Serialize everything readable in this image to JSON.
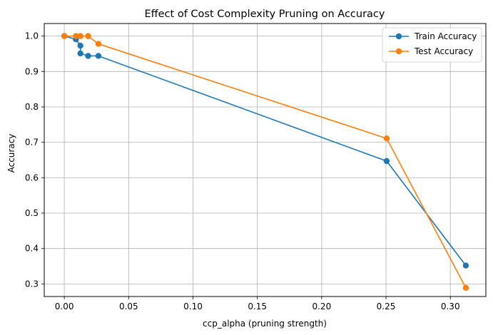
{
  "chart_data": {
    "type": "line",
    "title": "Effect of Cost Complexity Pruning on Accuracy",
    "xlabel": "ccp_alpha (pruning strength)",
    "ylabel": "Accuracy",
    "xlim": [
      -0.0156,
      0.3276
    ],
    "ylim": [
      0.2645,
      1.0355
    ],
    "xticks": [
      0.0,
      0.05,
      0.1,
      0.15,
      0.2,
      0.25,
      0.3
    ],
    "xtick_labels": [
      "0.00",
      "0.05",
      "0.10",
      "0.15",
      "0.20",
      "0.25",
      "0.30"
    ],
    "yticks": [
      0.3,
      0.4,
      0.5,
      0.6,
      0.7,
      0.8,
      0.9,
      1.0
    ],
    "ytick_labels": [
      "0.3",
      "0.4",
      "0.5",
      "0.6",
      "0.7",
      "0.8",
      "0.9",
      "1.0"
    ],
    "grid": true,
    "legend_position": "top-right",
    "series": [
      {
        "name": "Train Accuracy",
        "color": "#1f77b4",
        "x": [
          0.0,
          0.009,
          0.0125,
          0.0125,
          0.0185,
          0.0265,
          0.2505,
          0.312
        ],
        "y": [
          1.0,
          0.991,
          0.973,
          0.951,
          0.944,
          0.944,
          0.647,
          0.352
        ]
      },
      {
        "name": "Test Accuracy",
        "color": "#ff7f0e",
        "x": [
          0.0,
          0.009,
          0.0125,
          0.0185,
          0.0265,
          0.2505,
          0.312
        ],
        "y": [
          1.0,
          1.0,
          1.0,
          1.0,
          0.978,
          0.711,
          0.289
        ]
      }
    ]
  }
}
